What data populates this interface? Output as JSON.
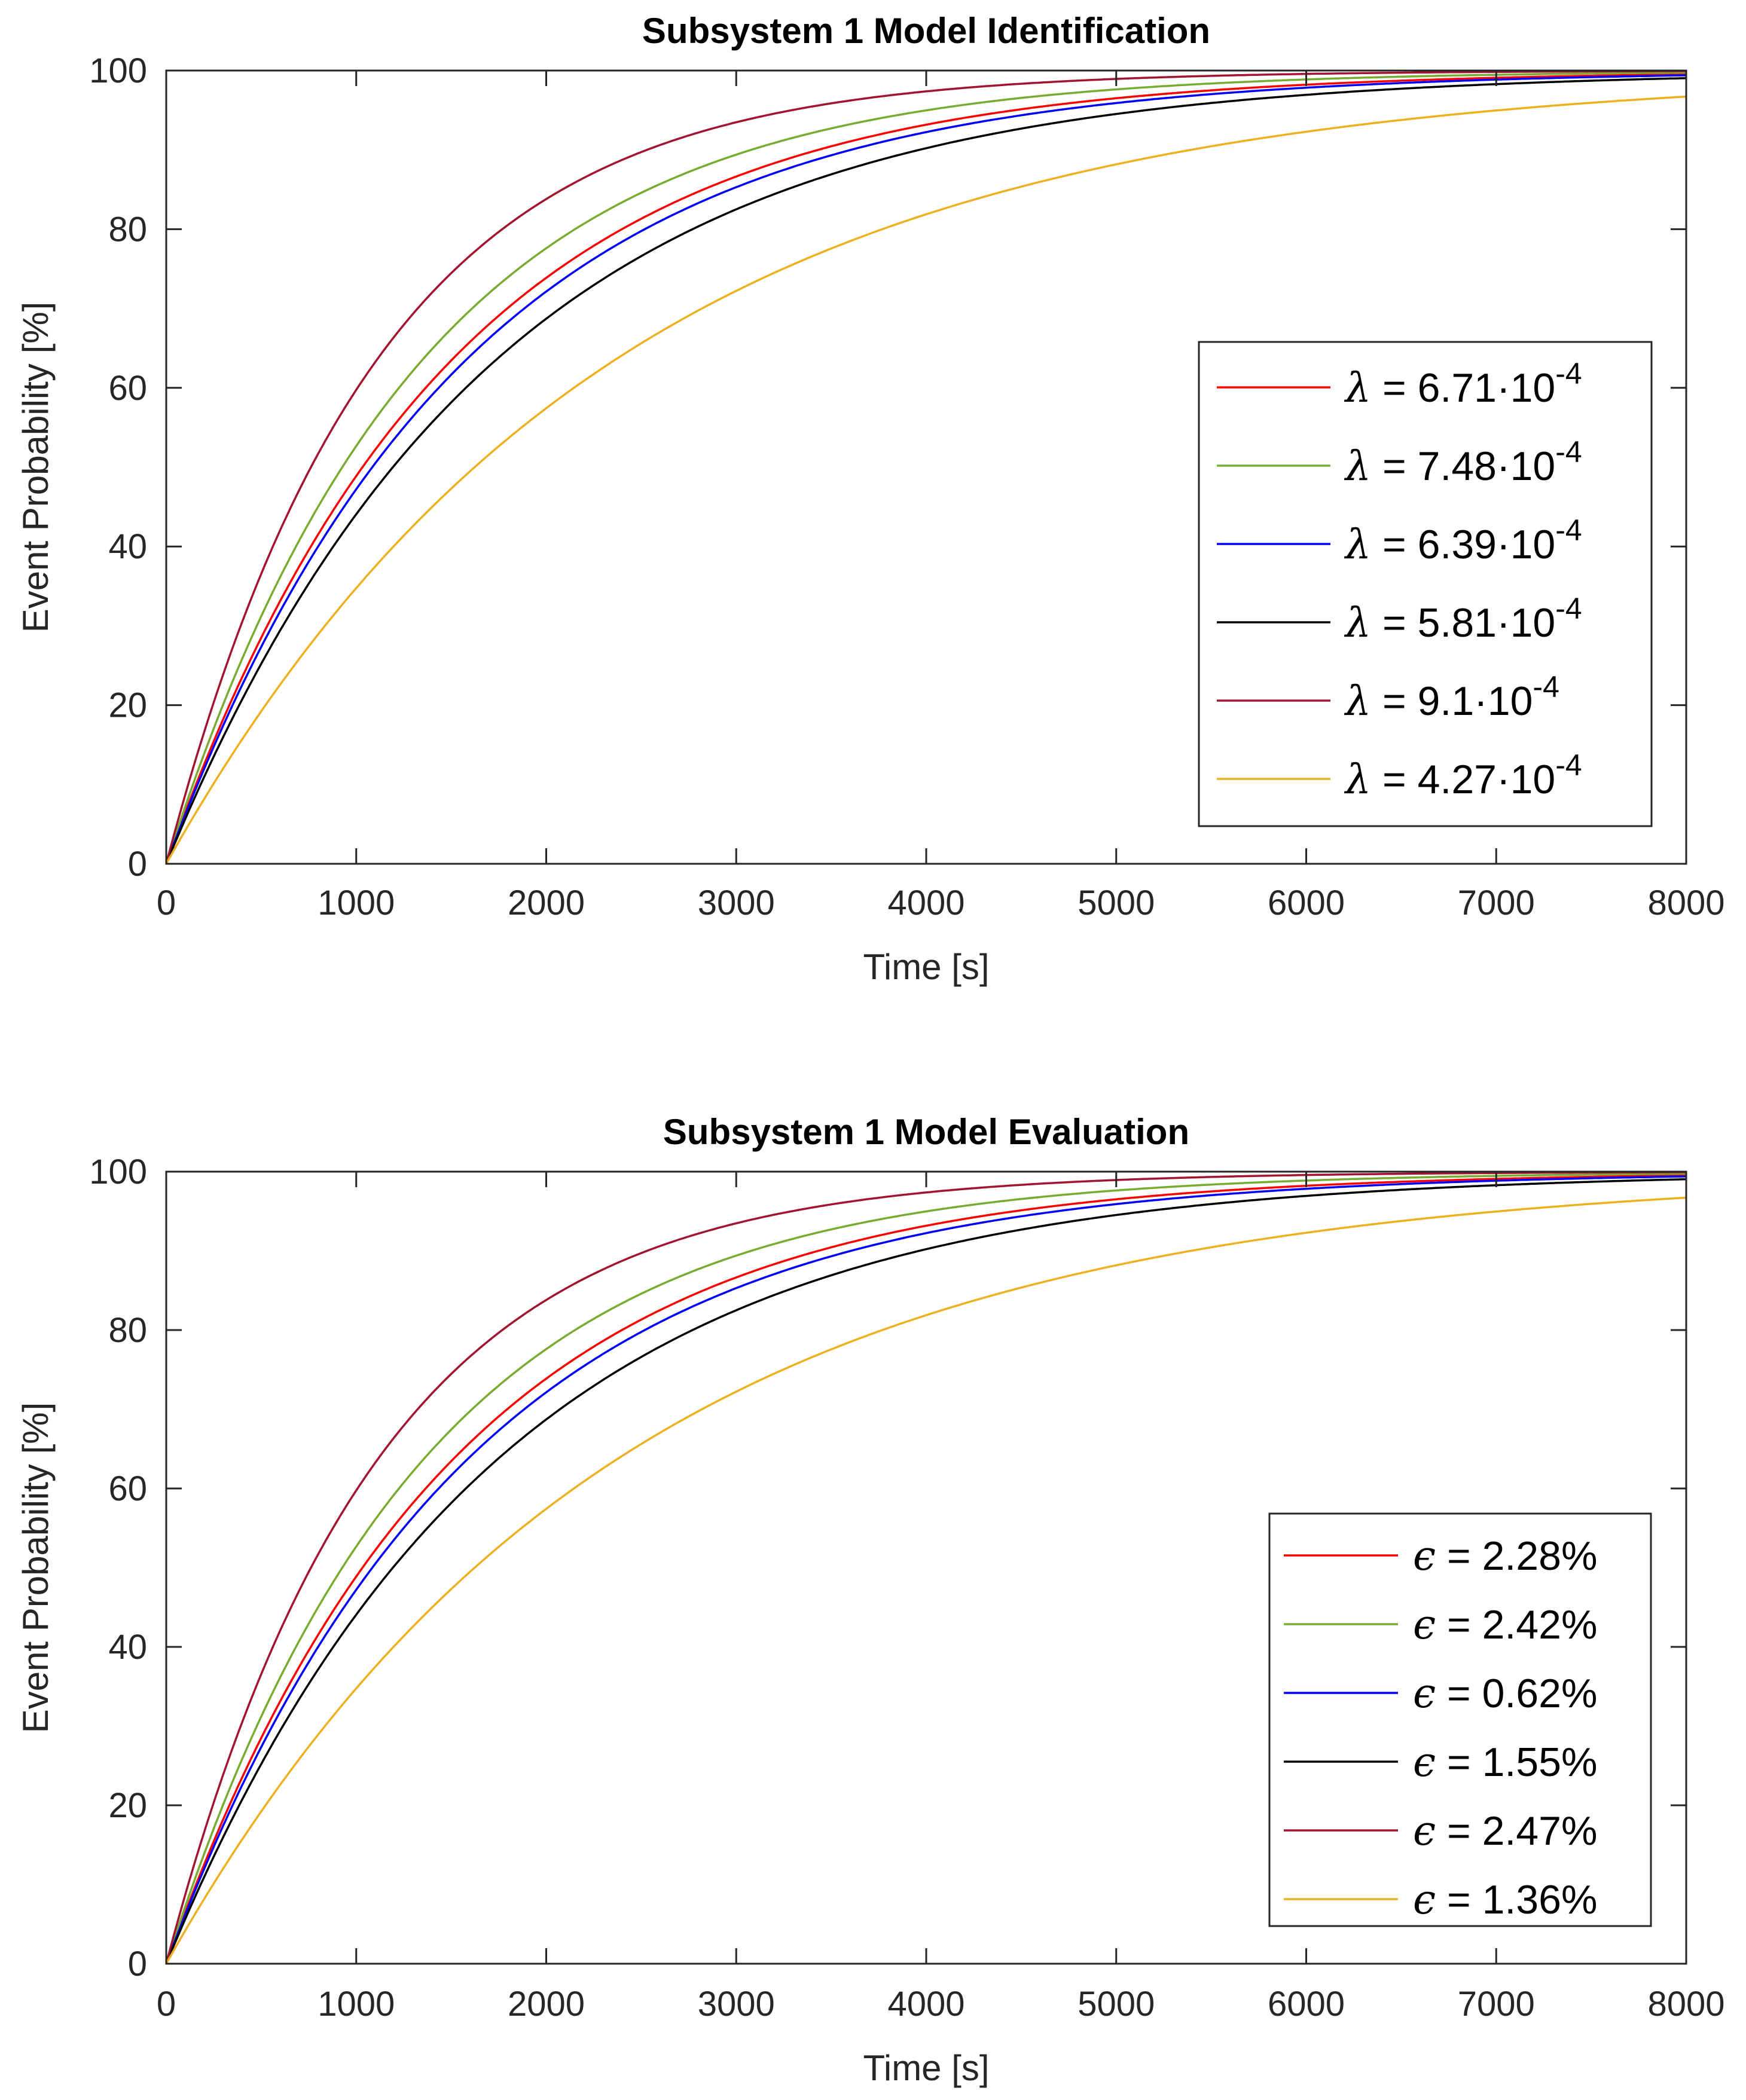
{
  "chart_data": [
    {
      "type": "line",
      "title": "Subsystem 1 Model Identification",
      "xlabel": "Time [s]",
      "ylabel": "Event Probability [%]",
      "xlim": [
        0,
        8000
      ],
      "ylim": [
        0,
        100
      ],
      "xticks": [
        "0",
        "1000",
        "2000",
        "3000",
        "4000",
        "5000",
        "6000",
        "7000",
        "8000"
      ],
      "yticks": [
        "0",
        "20",
        "40",
        "60",
        "80",
        "100"
      ],
      "grid": false,
      "legend_position": "right",
      "model": "P(t) = 100 * (1 - exp(-lambda * t))",
      "series": [
        {
          "name": "λ = 6.71·10-4",
          "symbol": "λ",
          "text": " = 6.71·10",
          "sup": "-4",
          "lambda": 0.000671,
          "color": "#ff0000"
        },
        {
          "name": "λ = 7.48·10-4",
          "symbol": "λ",
          "text": " = 7.48·10",
          "sup": "-4",
          "lambda": 0.000748,
          "color": "#77ac30"
        },
        {
          "name": "λ = 6.39·10-4",
          "symbol": "λ",
          "text": " = 6.39·10",
          "sup": "-4",
          "lambda": 0.000639,
          "color": "#0000ff"
        },
        {
          "name": "λ = 5.81·10-4",
          "symbol": "λ",
          "text": " = 5.81·10",
          "sup": "-4",
          "lambda": 0.000581,
          "color": "#000000"
        },
        {
          "name": "λ = 9.1·10-4",
          "symbol": "λ",
          "text": " = 9.1·10",
          "sup": "-4",
          "lambda": 0.00091,
          "color": "#a2142f"
        },
        {
          "name": "λ = 4.27·10-4",
          "symbol": "λ",
          "text": " = 4.27·10",
          "sup": "-4",
          "lambda": 0.000427,
          "color": "#edb120"
        }
      ]
    },
    {
      "type": "line",
      "title": "Subsystem 1 Model Evaluation",
      "xlabel": "Time [s]",
      "ylabel": "Event Probability [%]",
      "xlim": [
        0,
        8000
      ],
      "ylim": [
        0,
        100
      ],
      "xticks": [
        "0",
        "1000",
        "2000",
        "3000",
        "4000",
        "5000",
        "6000",
        "7000",
        "8000"
      ],
      "yticks": [
        "0",
        "20",
        "40",
        "60",
        "80",
        "100"
      ],
      "grid": false,
      "legend_position": "bottom-right",
      "model": "P(t) = 100 * (1 - exp(-lambda * t))",
      "series": [
        {
          "name": "ϵ = 2.28%",
          "symbol": "ϵ",
          "text": " = 2.28%",
          "sup": "",
          "lambda": 0.000671,
          "color": "#ff0000"
        },
        {
          "name": "ϵ = 2.42%",
          "symbol": "ϵ",
          "text": " = 2.42%",
          "sup": "",
          "lambda": 0.000748,
          "color": "#77ac30"
        },
        {
          "name": "ϵ = 0.62%",
          "symbol": "ϵ",
          "text": " = 0.62%",
          "sup": "",
          "lambda": 0.000639,
          "color": "#0000ff"
        },
        {
          "name": "ϵ = 1.55%",
          "symbol": "ϵ",
          "text": " = 1.55%",
          "sup": "",
          "lambda": 0.000581,
          "color": "#000000"
        },
        {
          "name": "ϵ = 2.47%",
          "symbol": "ϵ",
          "text": " = 2.47%",
          "sup": "",
          "lambda": 0.00091,
          "color": "#a2142f"
        },
        {
          "name": "ϵ = 1.36%",
          "symbol": "ϵ",
          "text": " = 1.36%",
          "sup": "",
          "lambda": 0.000427,
          "color": "#edb120"
        }
      ]
    }
  ]
}
